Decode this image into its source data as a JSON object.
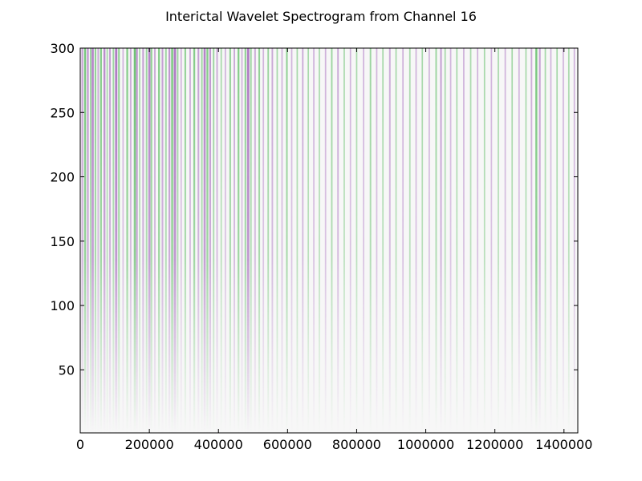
{
  "chart_data": {
    "type": "heatmap",
    "title": "Interictal Wavelet Spectrogram from Channel 16",
    "xlabel": "",
    "ylabel": "",
    "xlim": [
      0,
      1440000
    ],
    "ylim": [
      1,
      300
    ],
    "x_ticks": [
      0,
      200000,
      400000,
      600000,
      800000,
      1000000,
      1200000,
      1400000
    ],
    "x_tick_labels": [
      "0",
      "200000",
      "400000",
      "600000",
      "800000",
      "1000000",
      "1200000",
      "1400000"
    ],
    "y_ticks": [
      50,
      100,
      150,
      200,
      250,
      300
    ],
    "y_tick_labels": [
      "50",
      "100",
      "150",
      "200",
      "250",
      "300"
    ],
    "grid": false,
    "colormap": {
      "negative": "#9b59b6",
      "neutral": "#f7f7f7",
      "positive": "#3cb043"
    },
    "streaks": [
      {
        "x": 6000,
        "amp": -0.5
      },
      {
        "x": 14000,
        "amp": 0.7
      },
      {
        "x": 22000,
        "amp": -0.6
      },
      {
        "x": 30000,
        "amp": 0.4
      },
      {
        "x": 36000,
        "amp": -0.8
      },
      {
        "x": 44000,
        "amp": 0.5
      },
      {
        "x": 52000,
        "amp": -0.4
      },
      {
        "x": 60000,
        "amp": 0.6
      },
      {
        "x": 70000,
        "amp": -0.7
      },
      {
        "x": 78000,
        "amp": 0.3
      },
      {
        "x": 86000,
        "amp": -0.5
      },
      {
        "x": 96000,
        "amp": 0.4
      },
      {
        "x": 104000,
        "amp": -0.9
      },
      {
        "x": 112000,
        "amp": 0.5
      },
      {
        "x": 124000,
        "amp": -0.3
      },
      {
        "x": 136000,
        "amp": 0.6
      },
      {
        "x": 146000,
        "amp": -0.4
      },
      {
        "x": 158000,
        "amp": 0.8
      },
      {
        "x": 164000,
        "amp": -0.6
      },
      {
        "x": 172000,
        "amp": 0.3
      },
      {
        "x": 182000,
        "amp": -0.5
      },
      {
        "x": 192000,
        "amp": 0.4
      },
      {
        "x": 200000,
        "amp": -0.8
      },
      {
        "x": 206000,
        "amp": 0.5
      },
      {
        "x": 216000,
        "amp": -0.4
      },
      {
        "x": 228000,
        "amp": 0.6
      },
      {
        "x": 238000,
        "amp": -0.5
      },
      {
        "x": 248000,
        "amp": 0.4
      },
      {
        "x": 258000,
        "amp": -0.6
      },
      {
        "x": 266000,
        "amp": 0.7
      },
      {
        "x": 274000,
        "amp": -0.9
      },
      {
        "x": 282000,
        "amp": 0.4
      },
      {
        "x": 292000,
        "amp": -0.3
      },
      {
        "x": 304000,
        "amp": 0.5
      },
      {
        "x": 318000,
        "amp": -0.4
      },
      {
        "x": 330000,
        "amp": 0.6
      },
      {
        "x": 342000,
        "amp": -0.5
      },
      {
        "x": 352000,
        "amp": 0.4
      },
      {
        "x": 360000,
        "amp": -0.8
      },
      {
        "x": 368000,
        "amp": 0.6
      },
      {
        "x": 376000,
        "amp": -0.6
      },
      {
        "x": 386000,
        "amp": 0.4
      },
      {
        "x": 396000,
        "amp": -0.4
      },
      {
        "x": 408000,
        "amp": 0.3
      },
      {
        "x": 420000,
        "amp": -0.3
      },
      {
        "x": 434000,
        "amp": 0.5
      },
      {
        "x": 446000,
        "amp": -0.4
      },
      {
        "x": 458000,
        "amp": 0.6
      },
      {
        "x": 468000,
        "amp": -0.3
      },
      {
        "x": 478000,
        "amp": 0.5
      },
      {
        "x": 486000,
        "amp": -0.9
      },
      {
        "x": 494000,
        "amp": 0.4
      },
      {
        "x": 506000,
        "amp": -0.4
      },
      {
        "x": 518000,
        "amp": 0.5
      },
      {
        "x": 530000,
        "amp": -0.3
      },
      {
        "x": 544000,
        "amp": 0.4
      },
      {
        "x": 556000,
        "amp": -0.4
      },
      {
        "x": 570000,
        "amp": 0.3
      },
      {
        "x": 584000,
        "amp": -0.3
      },
      {
        "x": 598000,
        "amp": 0.5
      },
      {
        "x": 612000,
        "amp": -0.3
      },
      {
        "x": 628000,
        "amp": 0.3
      },
      {
        "x": 644000,
        "amp": -0.4
      },
      {
        "x": 660000,
        "amp": 0.3
      },
      {
        "x": 676000,
        "amp": -0.3
      },
      {
        "x": 692000,
        "amp": 0.3
      },
      {
        "x": 710000,
        "amp": -0.3
      },
      {
        "x": 728000,
        "amp": 0.4
      },
      {
        "x": 746000,
        "amp": -0.4
      },
      {
        "x": 764000,
        "amp": 0.3
      },
      {
        "x": 782000,
        "amp": -0.3
      },
      {
        "x": 800000,
        "amp": 0.3
      },
      {
        "x": 820000,
        "amp": -0.3
      },
      {
        "x": 840000,
        "amp": 0.4
      },
      {
        "x": 858000,
        "amp": -0.3
      },
      {
        "x": 876000,
        "amp": 0.3
      },
      {
        "x": 896000,
        "amp": -0.4
      },
      {
        "x": 914000,
        "amp": 0.3
      },
      {
        "x": 934000,
        "amp": -0.3
      },
      {
        "x": 954000,
        "amp": 0.3
      },
      {
        "x": 972000,
        "amp": -0.3
      },
      {
        "x": 990000,
        "amp": 0.3
      },
      {
        "x": 1010000,
        "amp": -0.3
      },
      {
        "x": 1030000,
        "amp": 0.4
      },
      {
        "x": 1044000,
        "amp": -0.5
      },
      {
        "x": 1056000,
        "amp": 0.3
      },
      {
        "x": 1072000,
        "amp": -0.3
      },
      {
        "x": 1090000,
        "amp": 0.3
      },
      {
        "x": 1110000,
        "amp": -0.3
      },
      {
        "x": 1130000,
        "amp": 0.3
      },
      {
        "x": 1150000,
        "amp": -0.3
      },
      {
        "x": 1170000,
        "amp": 0.3
      },
      {
        "x": 1190000,
        "amp": -0.3
      },
      {
        "x": 1210000,
        "amp": 0.3
      },
      {
        "x": 1230000,
        "amp": -0.3
      },
      {
        "x": 1250000,
        "amp": 0.3
      },
      {
        "x": 1270000,
        "amp": -0.3
      },
      {
        "x": 1290000,
        "amp": 0.3
      },
      {
        "x": 1306000,
        "amp": -0.4
      },
      {
        "x": 1320000,
        "amp": 0.7
      },
      {
        "x": 1330000,
        "amp": -0.5
      },
      {
        "x": 1346000,
        "amp": 0.3
      },
      {
        "x": 1362000,
        "amp": -0.3
      },
      {
        "x": 1380000,
        "amp": 0.3
      },
      {
        "x": 1398000,
        "amp": -0.3
      },
      {
        "x": 1414000,
        "amp": 0.3
      },
      {
        "x": 1430000,
        "amp": -0.3
      }
    ]
  }
}
